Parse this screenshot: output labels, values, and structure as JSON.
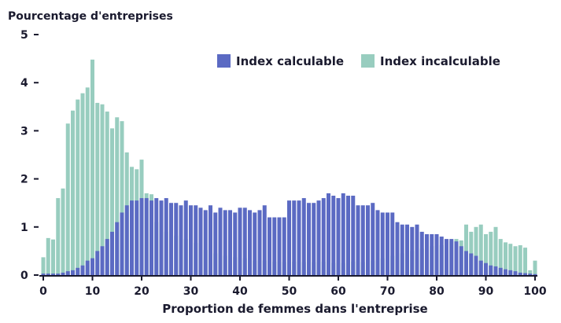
{
  "chart_data": {
    "type": "bar",
    "title": "",
    "ylabel": "Pourcentage d'entreprises",
    "xlabel": "Proportion de femmes dans l'entreprise",
    "xlim": [
      0,
      100
    ],
    "ylim": [
      0,
      5
    ],
    "x_ticks": [
      0,
      10,
      20,
      30,
      40,
      50,
      60,
      70,
      80,
      90,
      100
    ],
    "y_ticks": [
      0,
      1,
      2,
      3,
      4,
      5
    ],
    "legend_position": "top-right",
    "colors": {
      "calculable": "#5b6ac3",
      "incalculable": "#98cdbf",
      "axis": "#1a1a2e"
    },
    "x": [
      0,
      1,
      2,
      3,
      4,
      5,
      6,
      7,
      8,
      9,
      10,
      11,
      12,
      13,
      14,
      15,
      16,
      17,
      18,
      19,
      20,
      21,
      22,
      23,
      24,
      25,
      26,
      27,
      28,
      29,
      30,
      31,
      32,
      33,
      34,
      35,
      36,
      37,
      38,
      39,
      40,
      41,
      42,
      43,
      44,
      45,
      46,
      47,
      48,
      49,
      50,
      51,
      52,
      53,
      54,
      55,
      56,
      57,
      58,
      59,
      60,
      61,
      62,
      63,
      64,
      65,
      66,
      67,
      68,
      69,
      70,
      71,
      72,
      73,
      74,
      75,
      76,
      77,
      78,
      79,
      80,
      81,
      82,
      83,
      84,
      85,
      86,
      87,
      88,
      89,
      90,
      91,
      92,
      93,
      94,
      95,
      96,
      97,
      98,
      99,
      100
    ],
    "series": [
      {
        "name": "Index calculable",
        "key": "calculable",
        "values": [
          0.03,
          0.03,
          0.03,
          0.03,
          0.05,
          0.08,
          0.1,
          0.15,
          0.2,
          0.3,
          0.35,
          0.5,
          0.6,
          0.75,
          0.9,
          1.1,
          1.3,
          1.45,
          1.55,
          1.55,
          1.6,
          1.6,
          1.55,
          1.6,
          1.55,
          1.6,
          1.5,
          1.5,
          1.45,
          1.55,
          1.45,
          1.45,
          1.4,
          1.35,
          1.45,
          1.3,
          1.4,
          1.35,
          1.35,
          1.3,
          1.4,
          1.4,
          1.35,
          1.3,
          1.35,
          1.45,
          1.2,
          1.2,
          1.2,
          1.2,
          1.55,
          1.55,
          1.55,
          1.6,
          1.5,
          1.5,
          1.55,
          1.6,
          1.7,
          1.65,
          1.6,
          1.7,
          1.65,
          1.65,
          1.45,
          1.45,
          1.45,
          1.5,
          1.35,
          1.3,
          1.3,
          1.3,
          1.1,
          1.05,
          1.05,
          1.0,
          1.05,
          0.9,
          0.85,
          0.85,
          0.85,
          0.8,
          0.75,
          0.75,
          0.7,
          0.6,
          0.5,
          0.45,
          0.4,
          0.3,
          0.25,
          0.2,
          0.18,
          0.15,
          0.12,
          0.1,
          0.08,
          0.05,
          0.04,
          0.03,
          0.02
        ]
      },
      {
        "name": "Index incalculable",
        "key": "incalculable",
        "values": [
          0.37,
          0.77,
          0.74,
          1.6,
          1.8,
          3.15,
          3.42,
          3.65,
          3.78,
          3.9,
          4.48,
          3.58,
          3.55,
          3.4,
          3.05,
          3.28,
          3.2,
          2.55,
          2.25,
          2.2,
          2.4,
          1.7,
          1.68,
          1.1,
          1.0,
          0.9,
          0.92,
          0.82,
          0.87,
          0.75,
          0.62,
          0.67,
          0.58,
          0.52,
          0.5,
          0.45,
          0.43,
          0.4,
          0.38,
          0.37,
          0.4,
          0.35,
          0.35,
          0.3,
          0.32,
          0.3,
          0.3,
          0.28,
          0.27,
          0.27,
          0.3,
          0.28,
          0.28,
          0.27,
          0.25,
          0.27,
          0.3,
          0.28,
          0.3,
          0.25,
          0.3,
          0.25,
          0.3,
          0.28,
          0.3,
          0.27,
          0.3,
          0.3,
          0.32,
          0.35,
          0.37,
          0.4,
          0.42,
          0.45,
          0.47,
          0.5,
          0.5,
          0.55,
          0.6,
          0.6,
          0.6,
          0.62,
          0.68,
          0.7,
          0.75,
          0.72,
          1.05,
          0.9,
          1.0,
          1.05,
          0.85,
          0.9,
          1.0,
          0.75,
          0.68,
          0.65,
          0.6,
          0.62,
          0.57,
          0.1,
          0.3
        ]
      }
    ]
  }
}
